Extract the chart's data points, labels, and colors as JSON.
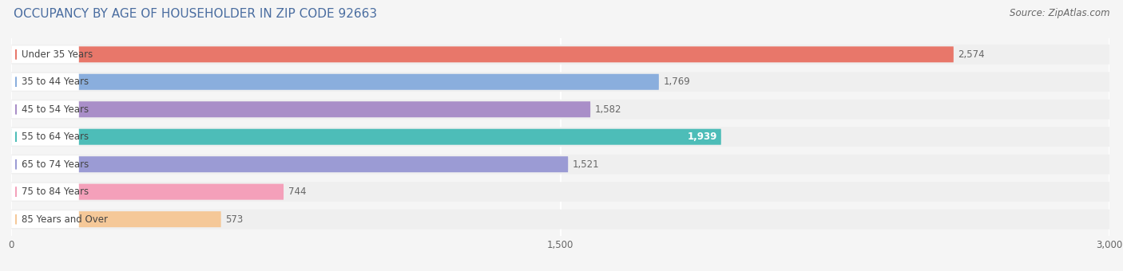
{
  "title": "OCCUPANCY BY AGE OF HOUSEHOLDER IN ZIP CODE 92663",
  "source": "Source: ZipAtlas.com",
  "categories": [
    "Under 35 Years",
    "35 to 44 Years",
    "45 to 54 Years",
    "55 to 64 Years",
    "65 to 74 Years",
    "75 to 84 Years",
    "85 Years and Over"
  ],
  "values": [
    2574,
    1769,
    1582,
    1939,
    1521,
    744,
    573
  ],
  "bar_colors": [
    "#E8776A",
    "#8AAEDD",
    "#A98EC8",
    "#4DBDB8",
    "#9B9BD4",
    "#F4A0BA",
    "#F5C898"
  ],
  "label_dot_colors": [
    "#E8776A",
    "#8AAEDD",
    "#A98EC8",
    "#4DBDB8",
    "#9B9BD4",
    "#F4A0BA",
    "#F5C898"
  ],
  "bg_color": "#EFEFEF",
  "label_bg_color": "#FFFFFF",
  "xlim": [
    0,
    3000
  ],
  "xticks": [
    0,
    1500,
    3000
  ],
  "xtick_labels": [
    "0",
    "1,500",
    "3,000"
  ],
  "title_fontsize": 11,
  "source_fontsize": 8.5,
  "label_fontsize": 8.5,
  "value_fontsize": 8.5,
  "background_color": "#F5F5F5",
  "value_inside_bar": [
    false,
    false,
    false,
    true,
    false,
    false,
    false
  ]
}
